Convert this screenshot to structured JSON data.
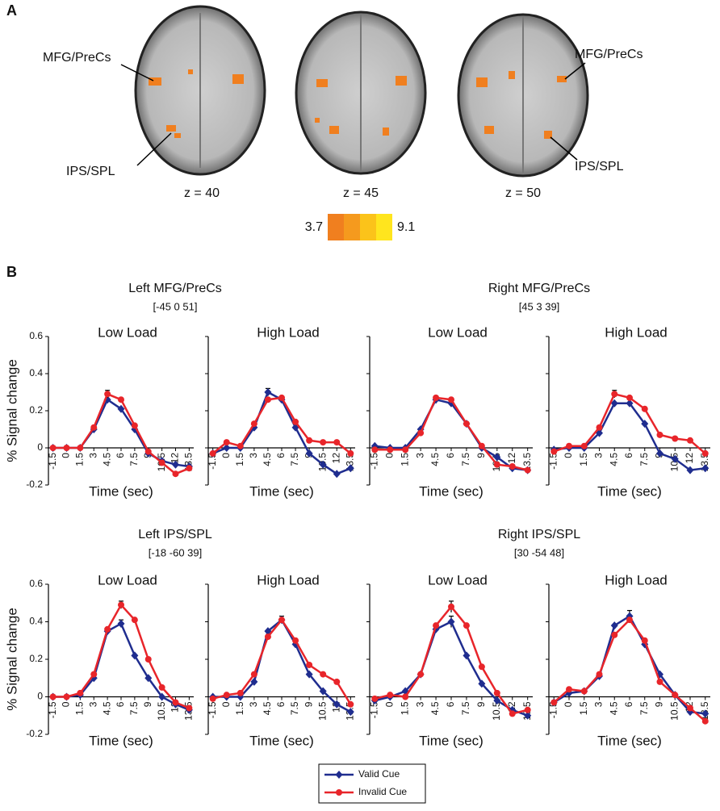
{
  "panel_a": {
    "label": "A",
    "slices": [
      "z = 40",
      "z = 45",
      "z = 50"
    ],
    "annotations": [
      "MFG/PreCs",
      "IPS/SPL",
      "MFG/PreCs",
      "IPS/SPL"
    ],
    "colorbar_min": 3.7,
    "colorbar_max": 9.1
  },
  "panel_b_label": "B",
  "groups": [
    {
      "title": "Left MFG/PreCs",
      "coords": "[-45 0 51]"
    },
    {
      "title": "Right MFG/PreCs",
      "coords": "[45 3 39]"
    },
    {
      "title": "Left IPS/SPL",
      "coords": "[-18 -60 39]"
    },
    {
      "title": "Right IPS/SPL",
      "coords": "[30 -54 48]"
    }
  ],
  "chart_data": [
    {
      "type": "line",
      "title": "Low Load",
      "xlabel": "Time (sec)",
      "ylabel": "% Signal change",
      "show_ytick_labels": true,
      "x": [
        -1.5,
        0,
        1.5,
        3,
        4.5,
        6,
        7.5,
        9,
        10.5,
        12,
        13.5
      ],
      "xlim": [
        -2,
        14
      ],
      "xticks": [
        -1.5,
        0,
        1.5,
        3,
        4.5,
        6,
        7.5,
        9,
        10.5,
        12,
        13.5
      ],
      "ylim": [
        -0.2,
        0.6
      ],
      "yticks": [
        -0.2,
        0,
        0.2,
        0.4,
        0.6
      ],
      "series": [
        {
          "name": "Valid Cue",
          "color": "#1f2d8f",
          "marker": "diamond",
          "values": [
            0,
            0,
            0,
            0.1,
            0.26,
            0.21,
            0.1,
            -0.03,
            -0.07,
            -0.09,
            -0.1
          ],
          "errors": [
            null,
            null,
            null,
            null,
            null,
            null,
            null,
            null,
            null,
            null,
            null
          ]
        },
        {
          "name": "Invalid Cue",
          "color": "#e8252a",
          "marker": "circle",
          "values": [
            0,
            0,
            0,
            0.11,
            0.29,
            0.26,
            0.12,
            -0.02,
            -0.08,
            -0.14,
            -0.11
          ],
          "errors": [
            null,
            null,
            null,
            null,
            0.02,
            null,
            null,
            null,
            null,
            null,
            null
          ]
        }
      ]
    },
    {
      "type": "line",
      "title": "High Load",
      "xlabel": "Time (sec)",
      "show_ytick_labels": false,
      "x": [
        -1.5,
        0,
        1.5,
        3,
        4.5,
        6,
        7.5,
        9,
        10.5,
        12,
        13.5
      ],
      "xlim": [
        -2,
        14
      ],
      "xticks": [
        -1.5,
        0,
        1.5,
        3,
        4.5,
        6,
        7.5,
        9,
        10.5,
        12,
        13.5
      ],
      "ylim": [
        -0.2,
        0.6
      ],
      "yticks": [
        -0.2,
        0,
        0.2,
        0.4,
        0.6
      ],
      "series": [
        {
          "name": "Valid Cue",
          "color": "#1f2d8f",
          "marker": "diamond",
          "values": [
            -0.03,
            0,
            0,
            0.11,
            0.3,
            0.26,
            0.11,
            -0.03,
            -0.09,
            -0.14,
            -0.11
          ],
          "errors": [
            null,
            null,
            null,
            null,
            0.02,
            null,
            null,
            null,
            null,
            null,
            null
          ]
        },
        {
          "name": "Invalid Cue",
          "color": "#e8252a",
          "marker": "circle",
          "values": [
            -0.03,
            0.03,
            0.01,
            0.13,
            0.26,
            0.27,
            0.14,
            0.04,
            0.03,
            0.03,
            -0.03
          ],
          "errors": [
            null,
            null,
            null,
            null,
            null,
            null,
            null,
            null,
            null,
            null,
            null
          ]
        }
      ]
    },
    {
      "type": "line",
      "title": "Low Load",
      "xlabel": "Time (sec)",
      "show_ytick_labels": false,
      "x": [
        -1.5,
        0,
        1.5,
        3,
        4.5,
        6,
        7.5,
        9,
        10.5,
        12,
        13.5
      ],
      "xlim": [
        -2,
        14
      ],
      "xticks": [
        -1.5,
        0,
        1.5,
        3,
        4.5,
        6,
        7.5,
        9,
        10.5,
        12,
        13.5
      ],
      "ylim": [
        -0.2,
        0.6
      ],
      "yticks": [
        -0.2,
        0,
        0.2,
        0.4,
        0.6
      ],
      "series": [
        {
          "name": "Valid Cue",
          "color": "#1f2d8f",
          "marker": "diamond",
          "values": [
            0.01,
            0,
            0,
            0.1,
            0.26,
            0.24,
            0.13,
            0,
            -0.05,
            -0.11,
            -0.12
          ],
          "errors": [
            null,
            null,
            null,
            null,
            0.02,
            null,
            null,
            null,
            null,
            null,
            null
          ]
        },
        {
          "name": "Invalid Cue",
          "color": "#e8252a",
          "marker": "circle",
          "values": [
            -0.01,
            -0.01,
            -0.01,
            0.08,
            0.27,
            0.26,
            0.13,
            0.01,
            -0.09,
            -0.1,
            -0.12
          ],
          "errors": [
            null,
            null,
            null,
            null,
            null,
            null,
            null,
            null,
            null,
            null,
            null
          ]
        }
      ]
    },
    {
      "type": "line",
      "title": "High Load",
      "xlabel": "Time (sec)",
      "show_ytick_labels": false,
      "x": [
        -1.5,
        0,
        1.5,
        3,
        4.5,
        6,
        7.5,
        9,
        10.5,
        12,
        13.5
      ],
      "xlim": [
        -2,
        14
      ],
      "xticks": [
        -1.5,
        0,
        1.5,
        3,
        4.5,
        6,
        7.5,
        9,
        10.5,
        12,
        13.5
      ],
      "ylim": [
        -0.2,
        0.6
      ],
      "yticks": [
        -0.2,
        0,
        0.2,
        0.4,
        0.6
      ],
      "series": [
        {
          "name": "Valid Cue",
          "color": "#1f2d8f",
          "marker": "diamond",
          "values": [
            -0.01,
            0,
            0,
            0.08,
            0.24,
            0.24,
            0.13,
            -0.03,
            -0.06,
            -0.12,
            -0.11
          ],
          "errors": [
            null,
            null,
            null,
            null,
            null,
            null,
            null,
            null,
            null,
            null,
            null
          ]
        },
        {
          "name": "Invalid Cue",
          "color": "#e8252a",
          "marker": "circle",
          "values": [
            -0.02,
            0.01,
            0.01,
            0.11,
            0.29,
            0.27,
            0.21,
            0.07,
            0.05,
            0.04,
            -0.03
          ],
          "errors": [
            null,
            null,
            null,
            null,
            0.02,
            null,
            null,
            null,
            null,
            null,
            null
          ]
        }
      ]
    },
    {
      "type": "line",
      "title": "Low Load",
      "xlabel": "Time (sec)",
      "ylabel": "% Signal change",
      "show_ytick_labels": true,
      "x": [
        -1.5,
        0,
        1.5,
        3,
        4.5,
        6,
        7.5,
        9,
        10.5,
        12,
        13.5
      ],
      "xlim": [
        -2,
        14
      ],
      "xticks": [
        -1.5,
        0,
        1.5,
        3,
        4.5,
        6,
        7.5,
        9,
        10.5,
        12,
        13.5
      ],
      "ylim": [
        -0.2,
        0.6
      ],
      "yticks": [
        -0.2,
        0,
        0.2,
        0.4,
        0.6
      ],
      "series": [
        {
          "name": "Valid Cue",
          "color": "#1f2d8f",
          "marker": "diamond",
          "values": [
            0,
            0,
            0.01,
            0.1,
            0.35,
            0.39,
            0.22,
            0.1,
            0,
            -0.04,
            -0.07
          ],
          "errors": [
            null,
            null,
            null,
            null,
            null,
            0.02,
            null,
            null,
            null,
            null,
            null
          ]
        },
        {
          "name": "Invalid Cue",
          "color": "#e8252a",
          "marker": "circle",
          "values": [
            0,
            0,
            0.02,
            0.12,
            0.36,
            0.49,
            0.41,
            0.2,
            0.05,
            -0.03,
            -0.06
          ],
          "errors": [
            null,
            null,
            null,
            null,
            null,
            0.02,
            null,
            null,
            null,
            null,
            null
          ]
        }
      ]
    },
    {
      "type": "line",
      "title": "High Load",
      "xlabel": "Time (sec)",
      "show_ytick_labels": false,
      "x": [
        -1.5,
        0,
        1.5,
        3,
        4.5,
        6,
        7.5,
        9,
        10.5,
        12,
        13.5
      ],
      "xlim": [
        -2,
        14
      ],
      "xticks": [
        -1.5,
        0,
        1.5,
        3,
        4.5,
        6,
        7.5,
        9,
        10.5,
        12,
        13.5
      ],
      "ylim": [
        -0.2,
        0.6
      ],
      "yticks": [
        -0.2,
        0,
        0.2,
        0.4,
        0.6
      ],
      "series": [
        {
          "name": "Valid Cue",
          "color": "#1f2d8f",
          "marker": "diamond",
          "values": [
            0,
            0,
            0,
            0.08,
            0.35,
            0.41,
            0.28,
            0.12,
            0.03,
            -0.04,
            -0.08
          ],
          "errors": [
            null,
            null,
            null,
            null,
            null,
            0.02,
            null,
            null,
            null,
            null,
            null
          ]
        },
        {
          "name": "Invalid Cue",
          "color": "#e8252a",
          "marker": "circle",
          "values": [
            -0.01,
            0.01,
            0.02,
            0.12,
            0.32,
            0.41,
            0.3,
            0.17,
            0.12,
            0.08,
            -0.04
          ],
          "errors": [
            null,
            null,
            null,
            null,
            null,
            null,
            null,
            null,
            null,
            null,
            null
          ]
        }
      ]
    },
    {
      "type": "line",
      "title": "Low Load",
      "xlabel": "Time (sec)",
      "show_ytick_labels": false,
      "x": [
        -1.5,
        0,
        1.5,
        3,
        4.5,
        6,
        7.5,
        9,
        10.5,
        12,
        13.5
      ],
      "xlim": [
        -2,
        14
      ],
      "xticks": [
        -1.5,
        0,
        1.5,
        3,
        4.5,
        6,
        7.5,
        9,
        10.5,
        12,
        13.5
      ],
      "ylim": [
        -0.2,
        0.6
      ],
      "yticks": [
        -0.2,
        0,
        0.2,
        0.4,
        0.6
      ],
      "series": [
        {
          "name": "Valid Cue",
          "color": "#1f2d8f",
          "marker": "diamond",
          "values": [
            -0.02,
            0,
            0.03,
            0.12,
            0.36,
            0.4,
            0.22,
            0.07,
            -0.02,
            -0.07,
            -0.1
          ],
          "errors": [
            null,
            null,
            null,
            null,
            null,
            0.03,
            null,
            null,
            null,
            null,
            null
          ]
        },
        {
          "name": "Invalid Cue",
          "color": "#e8252a",
          "marker": "circle",
          "values": [
            -0.01,
            0.01,
            0,
            0.12,
            0.38,
            0.48,
            0.38,
            0.16,
            0.02,
            -0.09,
            -0.07
          ],
          "errors": [
            null,
            null,
            null,
            null,
            null,
            0.03,
            null,
            null,
            null,
            null,
            null
          ]
        }
      ]
    },
    {
      "type": "line",
      "title": "High Load",
      "xlabel": "Time (sec)",
      "show_ytick_labels": false,
      "x": [
        -1.5,
        0,
        1.5,
        3,
        4.5,
        6,
        7.5,
        9,
        10.5,
        12,
        13.5
      ],
      "xlim": [
        -2,
        14
      ],
      "xticks": [
        -1.5,
        0,
        1.5,
        3,
        4.5,
        6,
        7.5,
        9,
        10.5,
        12,
        13.5
      ],
      "ylim": [
        -0.2,
        0.6
      ],
      "yticks": [
        -0.2,
        0,
        0.2,
        0.4,
        0.6
      ],
      "series": [
        {
          "name": "Valid Cue",
          "color": "#1f2d8f",
          "marker": "diamond",
          "values": [
            -0.03,
            0.02,
            0.03,
            0.11,
            0.38,
            0.43,
            0.28,
            0.12,
            0.01,
            -0.08,
            -0.09
          ],
          "errors": [
            null,
            null,
            null,
            null,
            null,
            0.03,
            null,
            null,
            null,
            null,
            null
          ]
        },
        {
          "name": "Invalid Cue",
          "color": "#e8252a",
          "marker": "circle",
          "values": [
            -0.03,
            0.04,
            0.03,
            0.12,
            0.33,
            0.41,
            0.3,
            0.08,
            0.01,
            -0.06,
            -0.13
          ],
          "errors": [
            null,
            null,
            null,
            null,
            null,
            null,
            null,
            null,
            null,
            null,
            null
          ]
        }
      ]
    }
  ]
}
